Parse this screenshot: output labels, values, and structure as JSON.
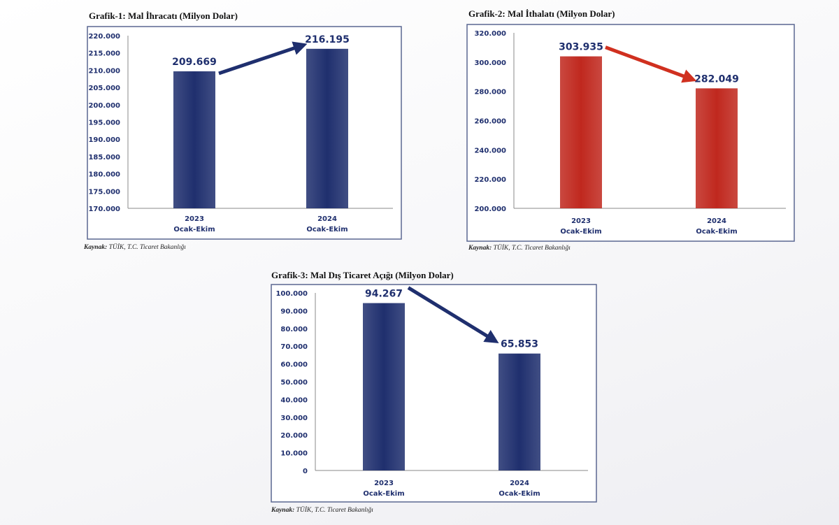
{
  "chart_data": [
    {
      "type": "bar",
      "title": "Grafik-1: Mal İhracatı (Milyon Dolar)",
      "categories": [
        [
          "2023",
          "Ocak-Ekim"
        ],
        [
          "2024",
          "Ocak-Ekim"
        ]
      ],
      "values": [
        209669,
        216195
      ],
      "data_labels": [
        "209.669",
        "216.195"
      ],
      "ylim": [
        170000,
        220000
      ],
      "yticks": [
        "170.000",
        "175.000",
        "180.000",
        "185.000",
        "190.000",
        "195.000",
        "200.000",
        "205.000",
        "210.000",
        "215.000",
        "220.000"
      ],
      "bar_color": "#1f2f6e",
      "arrow_color": "#1f2f6e",
      "arrow_direction": "up",
      "grid": false,
      "source": {
        "label": "Kaynak:",
        "text": "TÜİK, T.C. Ticaret Bakanlığı"
      }
    },
    {
      "type": "bar",
      "title": "Grafik-2: Mal İthalatı (Milyon Dolar)",
      "categories": [
        [
          "2023",
          "Ocak-Ekim"
        ],
        [
          "2024",
          "Ocak-Ekim"
        ]
      ],
      "values": [
        303935,
        282049
      ],
      "data_labels": [
        "303.935",
        "282.049"
      ],
      "ylim": [
        200000,
        320000
      ],
      "yticks": [
        "200.000",
        "220.000",
        "240.000",
        "260.000",
        "280.000",
        "300.000",
        "320.000"
      ],
      "bar_color": "#c0281e",
      "arrow_color": "#d0301f",
      "arrow_direction": "down",
      "grid": false,
      "source": {
        "label": "Kaynak:",
        "text": "TÜİK, T.C. Ticaret Bakanlığı"
      }
    },
    {
      "type": "bar",
      "title": "Grafik-3: Mal Dış Ticaret Açığı (Milyon Dolar)",
      "categories": [
        [
          "2023",
          "Ocak-Ekim"
        ],
        [
          "2024",
          "Ocak-Ekim"
        ]
      ],
      "values": [
        94267,
        65853
      ],
      "data_labels": [
        "94.267",
        "65.853"
      ],
      "ylim": [
        0,
        100000
      ],
      "yticks": [
        "0",
        "10.000",
        "20.000",
        "30.000",
        "40.000",
        "50.000",
        "60.000",
        "70.000",
        "80.000",
        "90.000",
        "100.000"
      ],
      "bar_color": "#1f2f6e",
      "arrow_color": "#1f2f6e",
      "arrow_direction": "down",
      "grid": false,
      "source": {
        "label": "Kaynak:",
        "text": "TÜİK, T.C. Ticaret Bakanlığı"
      }
    }
  ]
}
